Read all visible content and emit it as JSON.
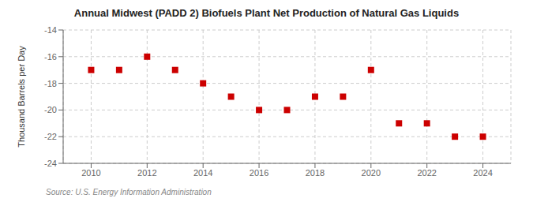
{
  "chart_data": {
    "type": "scatter",
    "title": "Annual Midwest (PADD 2) Biofuels Plant Net Production of Natural Gas Liquids",
    "y_label": "Thousand Barrels per Day",
    "annotations": [
      "Source: U.S. Energy Information Administration"
    ],
    "x": [
      2010,
      2011,
      2012,
      2013,
      2014,
      2015,
      2016,
      2017,
      2018,
      2019,
      2020,
      2021,
      2022,
      2023,
      2024
    ],
    "values": [
      -17.0,
      -17.0,
      -16.0,
      -17.0,
      -18.0,
      -19.0,
      -20.0,
      -20.0,
      -19.0,
      -19.0,
      -17.0,
      -21.0,
      -21.0,
      -22.0,
      -22.0
    ],
    "color": "#cc0000",
    "marker": "square",
    "xlim": [
      2009.0,
      2025.0
    ],
    "xticks": [
      2010,
      2012,
      2014,
      2016,
      2018,
      2020,
      2022,
      2024
    ],
    "ylim": [
      -24,
      -14
    ],
    "yticks": [
      -24,
      -22,
      -20,
      -18,
      -16,
      -14
    ],
    "grid": true
  }
}
